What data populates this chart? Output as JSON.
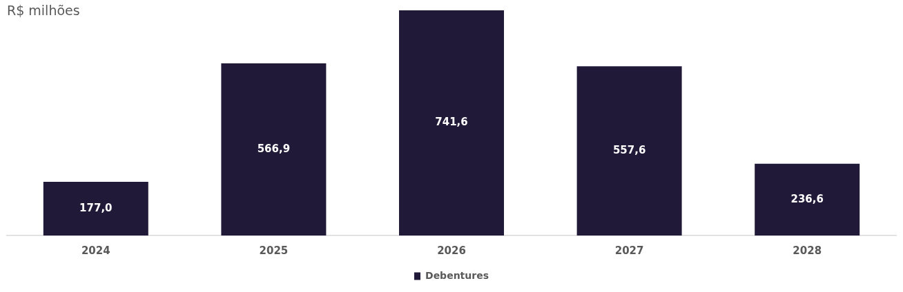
{
  "chart_data": {
    "type": "bar",
    "subtitle": "R$ milhões",
    "categories": [
      "2024",
      "2025",
      "2026",
      "2027",
      "2028"
    ],
    "series": [
      {
        "name": "Debentures",
        "color": "#201a38",
        "values": [
          177.0,
          566.9,
          741.6,
          557.6,
          236.6
        ],
        "value_labels": [
          "177,0",
          "566,9",
          "741,6",
          "557,6",
          "236,6"
        ]
      }
    ],
    "grid": false,
    "legend": "bottom"
  }
}
